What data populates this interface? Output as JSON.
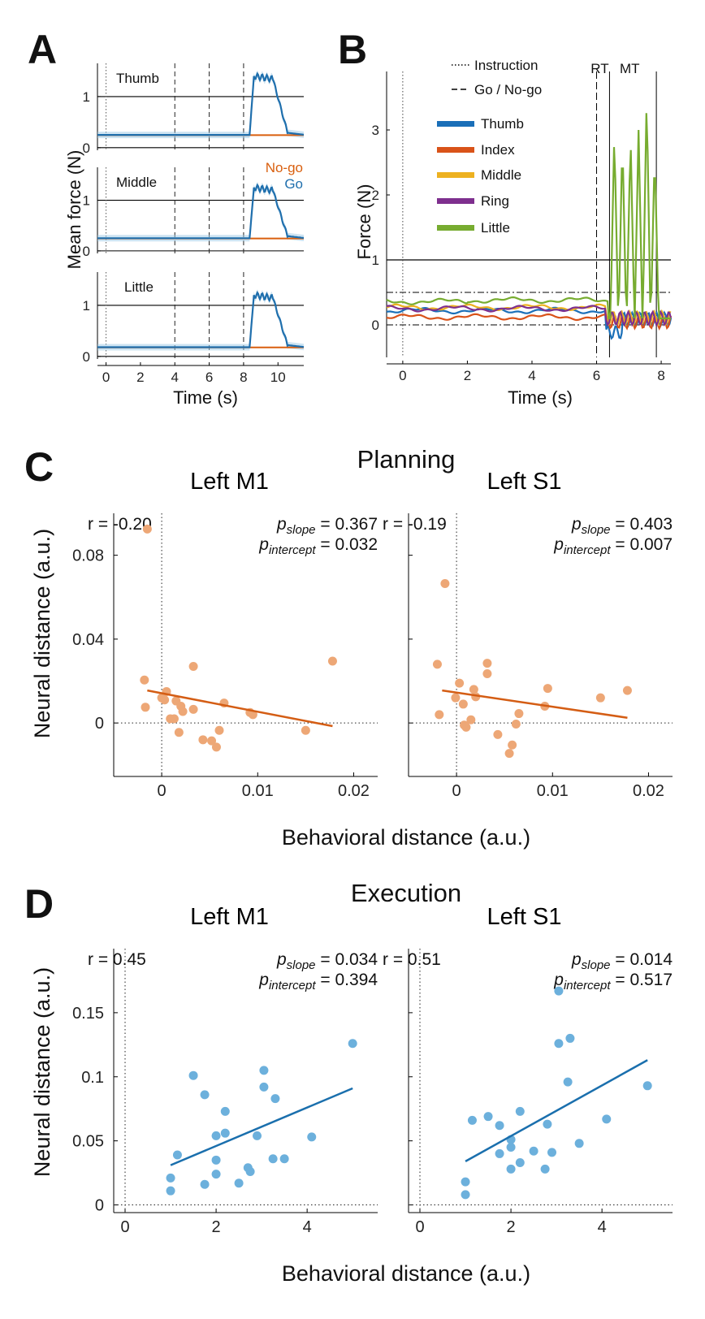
{
  "panels": {
    "A": {
      "letter": "A",
      "xlabel": "Time (s)",
      "ylabel": "Mean force (N)",
      "xlim": [
        -0.5,
        11.5
      ],
      "ylim": [
        -0.05,
        1.65
      ],
      "xticks": [
        0,
        2,
        4,
        6,
        8,
        10
      ],
      "yticks": [
        0,
        1
      ],
      "event_lines": {
        "instruction": 0,
        "dashed": [
          4,
          6,
          8
        ]
      },
      "threshold_lines": [
        0,
        1
      ],
      "legend": {
        "nogo": "No-go",
        "go": "Go"
      },
      "colors": {
        "go": "#1f6fad",
        "nogo": "#d95f0e",
        "band": "#9ec9e6"
      },
      "subplots": [
        {
          "label": "Thumb",
          "baseline": 0.25,
          "peak": 1.4
        },
        {
          "label": "Middle",
          "baseline": 0.25,
          "peak": 1.25
        },
        {
          "label": "Little",
          "baseline": 0.18,
          "peak": 1.2
        }
      ]
    },
    "B": {
      "letter": "B",
      "xlabel": "Time (s)",
      "ylabel": "Force (N)",
      "xlim": [
        -0.5,
        8.3
      ],
      "ylim": [
        -0.5,
        3.9
      ],
      "xticks": [
        0,
        2,
        4,
        6,
        8
      ],
      "yticks": [
        0,
        1,
        2,
        3
      ],
      "instruction_time": 0,
      "go_time": 6,
      "rt_end": 6.4,
      "mt_end": 7.85,
      "thresholds": {
        "solid": 1,
        "dashdot": [
          0,
          0.5
        ]
      },
      "labels": {
        "rt": "RT",
        "mt": "MT"
      },
      "line_legend": [
        {
          "label": "Instruction",
          "style": "dotted"
        },
        {
          "label": "Go / No-go",
          "style": "dashed"
        }
      ],
      "series": [
        {
          "name": "Thumb",
          "color": "#1a6fb8",
          "baseline": 0.22
        },
        {
          "name": "Index",
          "color": "#d95319",
          "baseline": 0.12
        },
        {
          "name": "Middle",
          "color": "#edb120",
          "baseline": 0.27
        },
        {
          "name": "Ring",
          "color": "#7e2f8e",
          "baseline": 0.25
        },
        {
          "name": "Little",
          "color": "#77ac30",
          "baseline": 0.36
        }
      ],
      "little_taps": [
        {
          "t": 6.55,
          "peak": 2.93
        },
        {
          "t": 6.8,
          "peak": 2.83
        },
        {
          "t": 7.05,
          "peak": 2.88
        },
        {
          "t": 7.3,
          "peak": 2.95
        },
        {
          "t": 7.55,
          "peak": 3.5
        },
        {
          "t": 7.8,
          "peak": 2.65
        }
      ]
    },
    "C": {
      "letter": "C",
      "title": "Planning",
      "title_color": "#d95f0e",
      "xlabel": "Behavioral distance (a.u.)",
      "ylabel": "Neural distance (a.u.)",
      "xlim": [
        -0.005,
        0.0225
      ],
      "ylim": [
        -0.0255,
        0.1
      ],
      "xticks": [
        0,
        0.01,
        0.02
      ],
      "xtick_labels": [
        "0",
        "0.01",
        "0.02"
      ],
      "yticks": [
        0,
        0.04,
        0.08
      ],
      "ytick_labels": [
        "0",
        "0.04",
        "0.08"
      ],
      "point_color": "#eda776",
      "line_color": "#d45d14",
      "chart_data": [
        {
          "type": "scatter",
          "title": "Left M1",
          "r_label": "r = -0.20",
          "p_slope": "0.367",
          "p_intercept": "0.032",
          "fit": {
            "x": [
              -0.0015,
              0.0178
            ],
            "y": [
              0.0155,
              -0.0015
            ]
          },
          "points": [
            [
              -0.0015,
              0.0925
            ],
            [
              -0.0018,
              0.0205
            ],
            [
              -0.0017,
              0.0075
            ],
            [
              0.0,
              0.012
            ],
            [
              0.0003,
              0.011
            ],
            [
              0.0005,
              0.015
            ],
            [
              0.0009,
              0.002
            ],
            [
              0.0013,
              0.002
            ],
            [
              0.0015,
              0.0105
            ],
            [
              0.0018,
              -0.0045
            ],
            [
              0.002,
              0.008
            ],
            [
              0.0022,
              0.0055
            ],
            [
              0.0033,
              0.027
            ],
            [
              0.0033,
              0.0065
            ],
            [
              0.0043,
              -0.008
            ],
            [
              0.0052,
              -0.0085
            ],
            [
              0.0057,
              -0.0115
            ],
            [
              0.006,
              -0.0035
            ],
            [
              0.0065,
              0.0095
            ],
            [
              0.0092,
              0.005
            ],
            [
              0.0095,
              0.004
            ],
            [
              0.015,
              -0.0035
            ],
            [
              0.0178,
              0.0295
            ]
          ]
        },
        {
          "type": "scatter",
          "title": "Left S1",
          "r_label": "r = -0.19",
          "p_slope": "0.403",
          "p_intercept": "0.007",
          "fit": {
            "x": [
              -0.0015,
              0.0178
            ],
            "y": [
              0.0155,
              0.0025
            ]
          },
          "points": [
            [
              -0.0012,
              0.0665
            ],
            [
              -0.002,
              0.028
            ],
            [
              -0.0018,
              0.004
            ],
            [
              -0.0001,
              0.012
            ],
            [
              0.0003,
              0.019
            ],
            [
              0.0007,
              0.009
            ],
            [
              0.0008,
              -0.001
            ],
            [
              0.001,
              -0.002
            ],
            [
              0.0015,
              0.0015
            ],
            [
              0.0018,
              0.016
            ],
            [
              0.002,
              0.0125
            ],
            [
              0.0032,
              0.0285
            ],
            [
              0.0032,
              0.0235
            ],
            [
              0.0043,
              -0.0055
            ],
            [
              0.0055,
              -0.0145
            ],
            [
              0.0058,
              -0.0105
            ],
            [
              0.0062,
              -0.0005
            ],
            [
              0.0065,
              0.0045
            ],
            [
              0.0092,
              0.008
            ],
            [
              0.0095,
              0.0165
            ],
            [
              0.015,
              0.012
            ],
            [
              0.0178,
              0.0155
            ]
          ]
        }
      ]
    },
    "D": {
      "letter": "D",
      "title": "Execution",
      "title_color": "#1f78b4",
      "xlabel": "Behavioral distance (a.u.)",
      "ylabel": "Neural distance (a.u.)",
      "xlim": [
        -0.25,
        5.55
      ],
      "ylim": [
        -0.006,
        0.2
      ],
      "xticks": [
        0,
        2,
        4
      ],
      "xtick_labels": [
        "0",
        "2",
        "4"
      ],
      "yticks": [
        0,
        0.05,
        0.1,
        0.15
      ],
      "ytick_labels": [
        "0",
        "0.05",
        "0.1",
        "0.15"
      ],
      "point_color": "#6cb0dc",
      "line_color": "#1a6fad",
      "chart_data": [
        {
          "type": "scatter",
          "title": "Left M1",
          "r_label": "r = 0.45",
          "p_slope": "0.034",
          "p_intercept": "0.394",
          "fit": {
            "x": [
              1.0,
              5.0
            ],
            "y": [
              0.031,
              0.091
            ]
          },
          "points": [
            [
              1.0,
              0.021
            ],
            [
              1.0,
              0.011
            ],
            [
              1.15,
              0.039
            ],
            [
              1.5,
              0.101
            ],
            [
              1.75,
              0.086
            ],
            [
              1.75,
              0.016
            ],
            [
              2.0,
              0.054
            ],
            [
              2.0,
              0.035
            ],
            [
              2.0,
              0.024
            ],
            [
              2.2,
              0.073
            ],
            [
              2.2,
              0.056
            ],
            [
              2.5,
              0.017
            ],
            [
              2.7,
              0.029
            ],
            [
              2.75,
              0.026
            ],
            [
              2.9,
              0.054
            ],
            [
              3.05,
              0.105
            ],
            [
              3.05,
              0.092
            ],
            [
              3.25,
              0.036
            ],
            [
              3.3,
              0.083
            ],
            [
              3.5,
              0.036
            ],
            [
              4.1,
              0.053
            ],
            [
              5.0,
              0.126
            ]
          ]
        },
        {
          "type": "scatter",
          "title": "Left S1",
          "r_label": "r = 0.51",
          "p_slope": "0.014",
          "p_intercept": "0.517",
          "fit": {
            "x": [
              1.0,
              5.0
            ],
            "y": [
              0.034,
              0.113
            ]
          },
          "points": [
            [
              1.0,
              0.018
            ],
            [
              1.0,
              0.008
            ],
            [
              1.15,
              0.066
            ],
            [
              1.5,
              0.069
            ],
            [
              1.75,
              0.062
            ],
            [
              1.75,
              0.04
            ],
            [
              2.0,
              0.051
            ],
            [
              2.0,
              0.045
            ],
            [
              2.0,
              0.028
            ],
            [
              2.2,
              0.073
            ],
            [
              2.2,
              0.033
            ],
            [
              2.5,
              0.042
            ],
            [
              2.75,
              0.028
            ],
            [
              2.8,
              0.063
            ],
            [
              2.9,
              0.041
            ],
            [
              3.05,
              0.167
            ],
            [
              3.05,
              0.126
            ],
            [
              3.25,
              0.096
            ],
            [
              3.3,
              0.13
            ],
            [
              3.5,
              0.048
            ],
            [
              4.1,
              0.067
            ],
            [
              5.0,
              0.093
            ]
          ]
        }
      ]
    }
  }
}
